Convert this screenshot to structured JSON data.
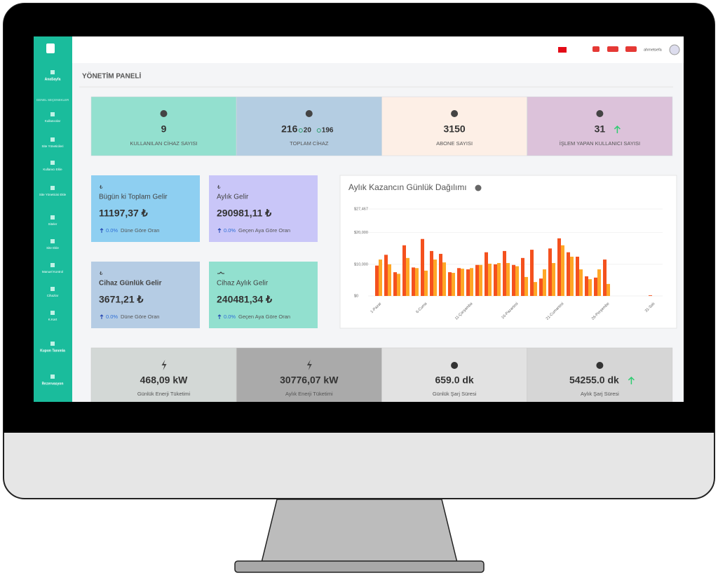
{
  "header": {
    "page_title": "YÖNETİM PANELİ",
    "username": "ahmetsefa"
  },
  "sidebar": {
    "items": [
      "AnaSayfa",
      "GENEL SEÇENEKLER",
      "Kullanıcılar",
      "Site Yöneticileri",
      "Kullanıcı Ekle",
      "Site Yöneticisi Ekle",
      "Siteler",
      "Site Ekle",
      "Manuel Kontrol",
      "Cihazlar",
      "K.Kart",
      "Kupon Tanımla",
      "Rezervasyon"
    ]
  },
  "stat_cards": [
    {
      "value": "9",
      "label": "KULLANILAN CİHAZ SAYISI"
    },
    {
      "value": "216",
      "extra": [
        "20",
        "196"
      ],
      "label": "TOPLAM CİHAZ"
    },
    {
      "value": "3150",
      "label": "ABONE SAYISI"
    },
    {
      "value": "31",
      "label": "İŞLEM YAPAN KULLANICI SAYISI"
    }
  ],
  "income_cards": [
    {
      "icon": "₺",
      "title": "Bügün ki Toplam Gelir",
      "value": "11197,37 ₺",
      "rate": "0.0%",
      "rate_label": "Düne Göre Oran"
    },
    {
      "icon": "₺",
      "title": "Aylık Gelir",
      "value": "290981,11 ₺",
      "rate": "0.0%",
      "rate_label": "Geçen Aya Göre Oran"
    },
    {
      "icon": "₺",
      "title": "Cihaz Günlük Gelir",
      "value": "3671,21 ₺",
      "rate": "0.0%",
      "rate_label": "Düne Göre Oran"
    },
    {
      "title": "Cihaz Aylık Gelir",
      "value": "240481,34 ₺",
      "rate": "0.0%",
      "rate_label": "Geçen Aya Göre Oran"
    }
  ],
  "energy_cards": [
    {
      "value": "468,09 kW",
      "label": "Günlük Enerji Tüketimi"
    },
    {
      "value": "30776,07 kW",
      "label": "Aylık Enerji Tüketimi"
    },
    {
      "value": "659.0 dk",
      "label": "Günlük Şarj Süresi"
    },
    {
      "value": "54255.0 dk",
      "label": "Aylık Şarj Süresi"
    }
  ],
  "chart_data": {
    "type": "bar",
    "title": "Aylık Kazancın Günlük Dağılımı",
    "categories": [
      "1-Pazar",
      null,
      null,
      null,
      null,
      "6-Cuma",
      null,
      null,
      null,
      null,
      "11-Çarşamba",
      null,
      null,
      null,
      null,
      "16-Pazartesi",
      null,
      null,
      null,
      null,
      "21-Cumartesi",
      null,
      null,
      null,
      null,
      "26-Perşembe",
      null,
      null,
      null,
      null,
      "31-Salı"
    ],
    "series": [
      {
        "color": "#f4511e",
        "values": [
          9600,
          13000,
          7500,
          16000,
          9000,
          18000,
          14200,
          13300,
          7500,
          8800,
          8400,
          9800,
          13800,
          10000,
          14200,
          9800,
          12000,
          14600,
          5500,
          15000,
          18200,
          13800,
          12400,
          6200,
          5800,
          11500,
          null,
          null,
          null,
          null,
          200
        ]
      },
      {
        "color": "#ffa726",
        "values": [
          11500,
          10000,
          7000,
          12000,
          8800,
          8000,
          11500,
          10600,
          7300,
          8600,
          8800,
          9800,
          10200,
          10400,
          10400,
          9400,
          6000,
          4400,
          8400,
          10400,
          16000,
          12400,
          8400,
          5300,
          8400,
          3800,
          null,
          null,
          null,
          null,
          null
        ]
      }
    ],
    "ylim": [
      0,
      27467
    ],
    "yticks": [
      {
        "value": 0,
        "label": "$0"
      },
      {
        "value": 10000,
        "label": "$10,000"
      },
      {
        "value": 20000,
        "label": "$20,000"
      },
      {
        "value": 27467,
        "label": "$27,467"
      }
    ],
    "grid": true
  }
}
